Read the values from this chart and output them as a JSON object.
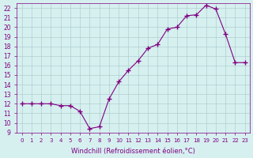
{
  "x": [
    0,
    1,
    2,
    3,
    4,
    5,
    6,
    7,
    8,
    9,
    10,
    11,
    12,
    13,
    14,
    15,
    16,
    17,
    18,
    19,
    20,
    21,
    22,
    23
  ],
  "y": [
    12,
    12,
    12,
    12,
    11.8,
    11.8,
    11.2,
    9.4,
    9.6,
    12.5,
    14.3,
    15.5,
    16.5,
    17.8,
    18.2,
    19.8,
    20.0,
    21.2,
    21.3,
    22.3,
    21.9,
    19.3,
    16.3,
    16.3
  ],
  "ylim": [
    9,
    22.5
  ],
  "yticks": [
    9,
    10,
    11,
    12,
    13,
    14,
    15,
    16,
    17,
    18,
    19,
    20,
    21,
    22
  ],
  "xtick_labels": [
    "0",
    "1",
    "2",
    "3",
    "4",
    "5",
    "6",
    "7",
    "8",
    "9",
    "10",
    "11",
    "12",
    "13",
    "14",
    "15",
    "16",
    "17",
    "18",
    "19",
    "20",
    "21",
    "22",
    "23"
  ],
  "line_color": "#800080",
  "marker": "+",
  "bg_color": "#d6f0f0",
  "grid_color": "#b0cece",
  "xlabel": "Windchill (Refroidissement éolien,°C)"
}
